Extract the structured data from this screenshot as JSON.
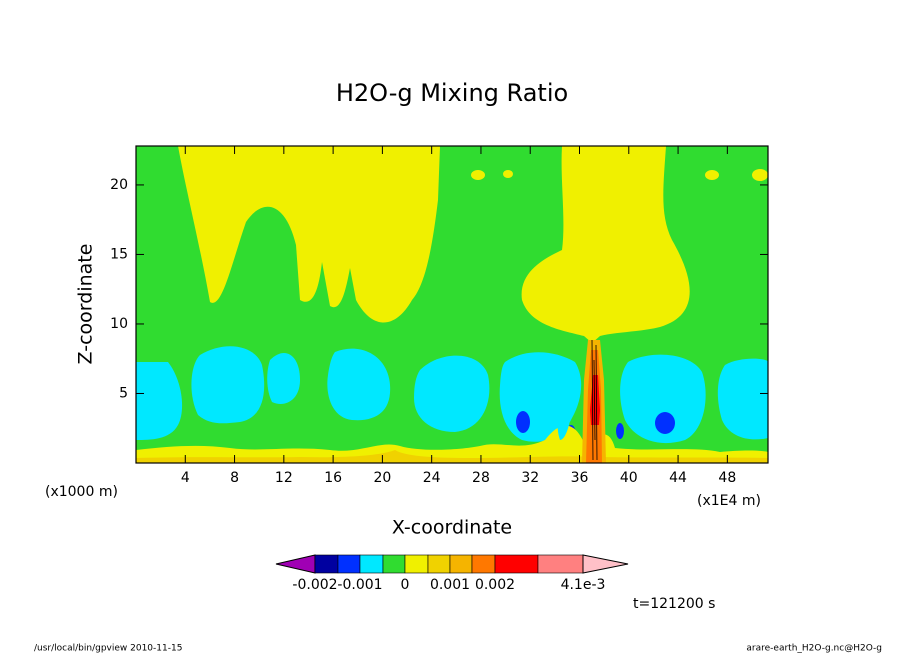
{
  "chart_data": {
    "type": "contour",
    "title": "H2O-g Mixing Ratio",
    "x_label": "X-coordinate",
    "y_label": "Z-coordinate",
    "x_unit_left": "(x1000 m)",
    "x_unit_right": "(x1E4 m)",
    "time_label": "t=121200 s",
    "footer_left": "/usr/local/bin/gpview  2010-11-15",
    "footer_right": "arare-earth_H2O-g.nc@H2O-g",
    "xlim": [
      0,
      51.3
    ],
    "ylim": [
      0,
      22.8
    ],
    "xticks": [
      4,
      8,
      12,
      16,
      20,
      24,
      28,
      32,
      36,
      40,
      44,
      48
    ],
    "yticks": [
      5,
      10,
      15,
      20
    ],
    "colorbar": {
      "colors": [
        "#a000b4",
        "#0000a0",
        "#0030ff",
        "#00e8ff",
        "#30dc30",
        "#f0f000",
        "#f0d200",
        "#f5b400",
        "#ff7800",
        "#ff0000",
        "#ff8080",
        "#ffc0c8"
      ],
      "levels": [
        -0.002,
        -0.0015,
        -0.001,
        -0.0005,
        0,
        0.0005,
        0.001,
        0.0015,
        0.002,
        0.003,
        0.0041
      ],
      "ticks": [
        -0.002,
        -0.001,
        0,
        0.001,
        0.002,
        {
          "value": 0.0041,
          "label": "4.1e-3"
        }
      ]
    }
  }
}
